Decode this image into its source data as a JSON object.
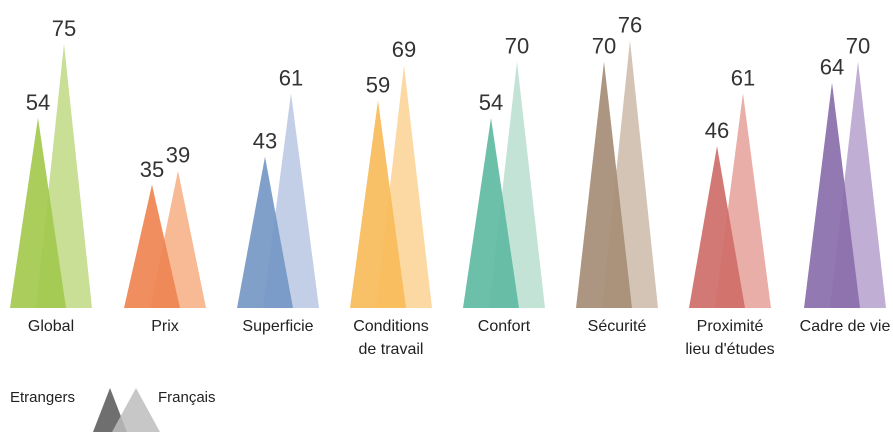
{
  "chart_data": {
    "type": "bar",
    "title": "",
    "xlabel": "",
    "ylabel": "",
    "ylim": [
      0,
      80
    ],
    "legend_position": "bottom-left",
    "categories": [
      [
        "Global"
      ],
      [
        "Prix"
      ],
      [
        "Superficie"
      ],
      [
        "Conditions",
        "de travail"
      ],
      [
        "Confort"
      ],
      [
        "Sécurité"
      ],
      [
        "Proximité",
        "lieu d'études"
      ],
      [
        "Cadre de vie"
      ]
    ],
    "series": [
      {
        "name": "Etrangers",
        "values": [
          54,
          35,
          43,
          59,
          54,
          70,
          46,
          64
        ]
      },
      {
        "name": "Français",
        "values": [
          75,
          39,
          61,
          69,
          70,
          76,
          61,
          70
        ]
      }
    ],
    "colors": [
      {
        "dark": "#a3c94e",
        "light": "#c8df95"
      },
      {
        "dark": "#ef8452",
        "light": "#f8b995"
      },
      {
        "dark": "#7598c6",
        "light": "#c2cfe6"
      },
      {
        "dark": "#f7bc5a",
        "light": "#fcd9a3"
      },
      {
        "dark": "#5fbaa2",
        "light": "#c3e3d6"
      },
      {
        "dark": "#a68d76",
        "light": "#d4c4b5"
      },
      {
        "dark": "#cf6e69",
        "light": "#e9aea8"
      },
      {
        "dark": "#8a6eaa",
        "light": "#c0aed4"
      }
    ],
    "legend_colors": {
      "dark": "#6f6f6f",
      "light": "#bdbdbd"
    }
  }
}
